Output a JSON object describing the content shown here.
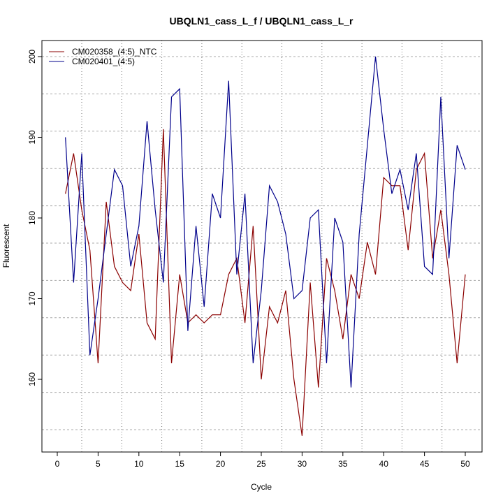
{
  "chart_data": {
    "type": "line",
    "title": "UBQLN1_cass_L_f / UBQLN1_cass_L_r",
    "xlabel": "Cycle",
    "ylabel": "Fluorescent",
    "xlim": [
      -2,
      52
    ],
    "ylim": [
      151,
      202
    ],
    "xticks": [
      0,
      5,
      10,
      15,
      20,
      25,
      30,
      35,
      40,
      45,
      50
    ],
    "yticks": [
      160,
      170,
      180,
      190,
      200
    ],
    "grid": true,
    "legend_position": "top-left",
    "x": [
      1,
      2,
      3,
      4,
      5,
      6,
      7,
      8,
      9,
      10,
      11,
      12,
      13,
      14,
      15,
      16,
      17,
      18,
      19,
      20,
      21,
      22,
      23,
      24,
      25,
      26,
      27,
      28,
      29,
      30,
      31,
      32,
      33,
      34,
      35,
      36,
      37,
      38,
      39,
      40,
      41,
      42,
      43,
      44,
      45,
      46,
      47,
      48,
      49,
      50
    ],
    "series": [
      {
        "name": "CM020358_(4:5)_NTC",
        "color": "#8b0000",
        "values": [
          183,
          188,
          181,
          176,
          162,
          182,
          174,
          172,
          171,
          178,
          167,
          165,
          191,
          162,
          173,
          167,
          168,
          167,
          168,
          168,
          173,
          175,
          167,
          179,
          160,
          169,
          167,
          171,
          160,
          153,
          172,
          159,
          175,
          171,
          165,
          173,
          170,
          177,
          173,
          185,
          184,
          184,
          176,
          186,
          188,
          175,
          181,
          173,
          162,
          173
        ]
      },
      {
        "name": "CM020401_(4:5)",
        "color": "#00008b",
        "values": [
          190,
          172,
          188,
          163,
          170,
          178,
          186,
          184,
          174,
          179,
          192,
          181,
          172,
          195,
          196,
          166,
          179,
          169,
          183,
          180,
          197,
          173,
          183,
          162,
          171,
          184,
          182,
          178,
          170,
          171,
          180,
          181,
          162,
          180,
          177,
          159,
          178,
          189,
          200,
          191,
          183,
          186,
          181,
          188,
          174,
          173,
          195,
          175,
          189,
          186
        ]
      }
    ]
  }
}
